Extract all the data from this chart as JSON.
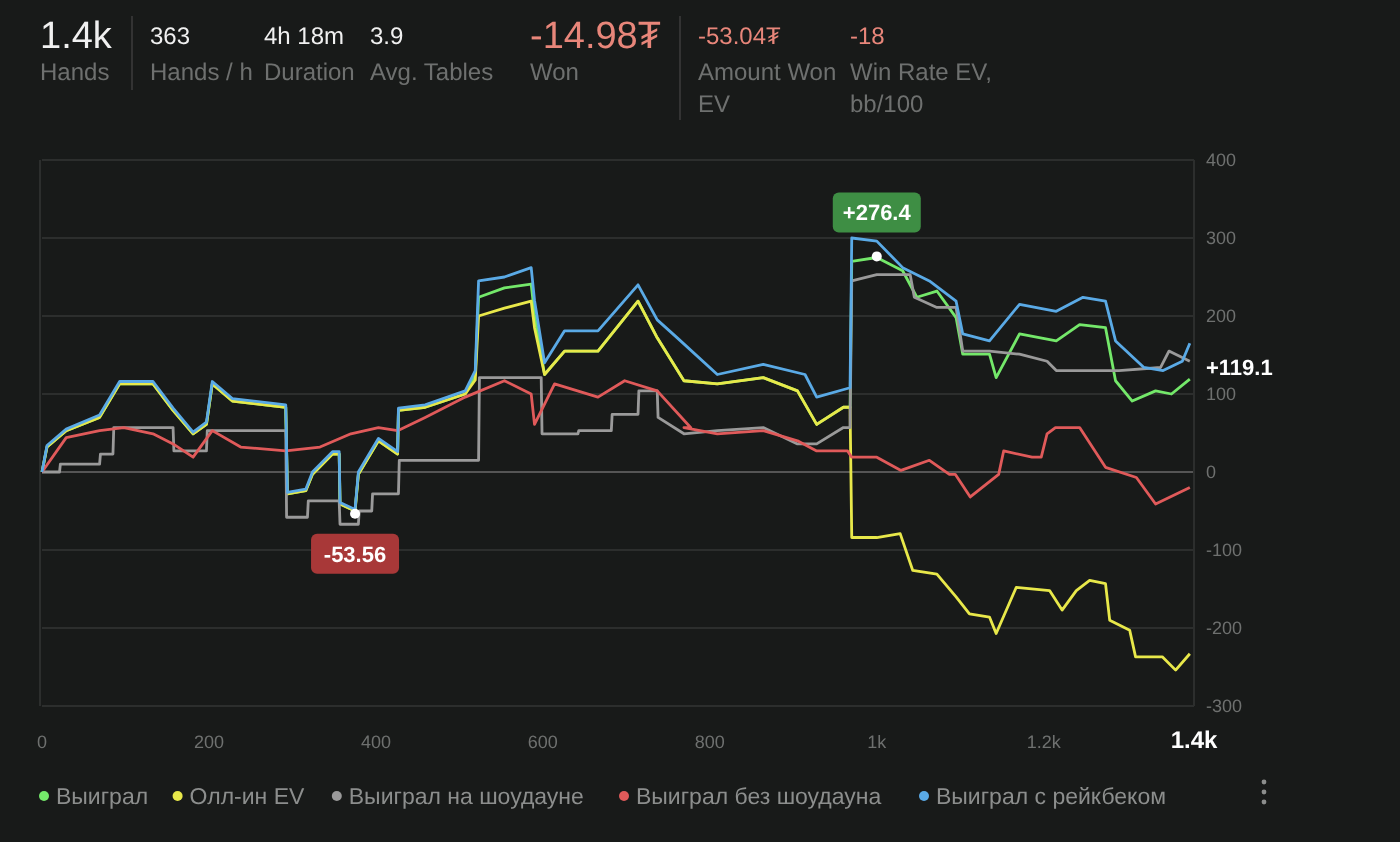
{
  "chart_data": {
    "type": "line",
    "annotations": [
      "1.4k",
      "Hands",
      "363",
      "Hands / h",
      "4h 18m",
      "Duration",
      "3.9",
      "Avg. Tables",
      "-14.98₮",
      "Won",
      "-53.04₮",
      "Amount Won EV",
      "-18",
      "Win Rate EV, bb/100",
      {
        "text": "+276.4",
        "x": 1000,
        "y": 276.4
      },
      {
        "text": "-53.56",
        "x": 375,
        "y": -53.56
      },
      {
        "text": "+119.1",
        "x": 1375,
        "y": 119.1
      }
    ],
    "xlim": [
      0,
      1380
    ],
    "ylim": [
      -300,
      400
    ],
    "xticks": [
      0,
      200,
      400,
      600,
      800,
      {
        "value": 1000,
        "label": "1k"
      },
      {
        "value": 1200,
        "label": "1.2k"
      },
      {
        "value": 1380,
        "label": "1.4k"
      }
    ],
    "yticks": [
      -300,
      -200,
      -100,
      0,
      100,
      200,
      300,
      400
    ],
    "grid": "y",
    "legend": "bottom",
    "marker": "none",
    "line_style": "solid",
    "series": [
      {
        "name": "Выиграл",
        "color": "#74e86a",
        "x": [
          0,
          6,
          29,
          69,
          93,
          133,
          157,
          181,
          197,
          204,
          228,
          292,
          294,
          316,
          324,
          348,
          356,
          357,
          375,
          379,
          403,
          426,
          427,
          459,
          507,
          519,
          523,
          554,
          586,
          590,
          602,
          626,
          666,
          714,
          737,
          769,
          809,
          864,
          905,
          928,
          960,
          968,
          970,
          1000,
          1031,
          1048,
          1072,
          1095,
          1103,
          1135,
          1143,
          1171,
          1215,
          1243,
          1274,
          1286,
          1306,
          1334,
          1353,
          1375
        ],
        "values": [
          0,
          32,
          53,
          70,
          113,
          113,
          79,
          49,
          61,
          113,
          91,
          83,
          -28,
          -24,
          -3,
          23,
          23,
          -41,
          -50,
          -3,
          40,
          23,
          79,
          83,
          100,
          125,
          224,
          236,
          241,
          202,
          125,
          155,
          155,
          219,
          172,
          117,
          113,
          121,
          104,
          61,
          83,
          83,
          270,
          275,
          258,
          224,
          232,
          198,
          151,
          151,
          121,
          177,
          168,
          189,
          185,
          117,
          91,
          104,
          100,
          119.1
        ]
      },
      {
        "name": "Олл-ин EV",
        "color": "#e8e84a",
        "x": [
          0,
          6,
          29,
          69,
          93,
          133,
          157,
          181,
          197,
          204,
          228,
          292,
          294,
          316,
          324,
          348,
          356,
          357,
          375,
          379,
          403,
          426,
          427,
          459,
          507,
          519,
          523,
          554,
          586,
          590,
          602,
          626,
          666,
          714,
          737,
          769,
          809,
          864,
          905,
          928,
          960,
          968,
          970,
          1000,
          1028,
          1043,
          1072,
          1095,
          1111,
          1135,
          1143,
          1167,
          1207,
          1222,
          1239,
          1255,
          1274,
          1279,
          1303,
          1310,
          1342,
          1358,
          1375
        ],
        "values": [
          0,
          32,
          53,
          70,
          113,
          113,
          79,
          49,
          61,
          113,
          91,
          83,
          -28,
          -24,
          -3,
          23,
          23,
          -41,
          -50,
          -3,
          40,
          23,
          79,
          83,
          100,
          118,
          200,
          210,
          219,
          185,
          125,
          155,
          155,
          219,
          172,
          117,
          113,
          121,
          104,
          61,
          83,
          83,
          -84,
          -84,
          -79,
          -126,
          -131,
          -160,
          -182,
          -186,
          -207,
          -148,
          -152,
          -177,
          -152,
          -139,
          -143,
          -190,
          -203,
          -237,
          -237,
          -254,
          -233
        ]
      },
      {
        "name": "Выиграл на шоудауне",
        "color": "#9a9a9a",
        "x": [
          0,
          21,
          22,
          69,
          70,
          85,
          86,
          157,
          158,
          197,
          198,
          292,
          293,
          318,
          319,
          356,
          357,
          379,
          380,
          395,
          396,
          427,
          428,
          523,
          524,
          598,
          599,
          642,
          643,
          682,
          683,
          714,
          715,
          737,
          738,
          769,
          809,
          864,
          905,
          928,
          960,
          968,
          970,
          1000,
          1040,
          1045,
          1072,
          1095,
          1103,
          1135,
          1171,
          1204,
          1215,
          1240,
          1290,
          1340,
          1350,
          1375
        ],
        "values": [
          0,
          0,
          10,
          10,
          23,
          23,
          57,
          57,
          27,
          27,
          53,
          53,
          -58,
          -58,
          -37,
          -37,
          -67,
          -67,
          -50,
          -50,
          -28,
          -28,
          15,
          15,
          121,
          121,
          49,
          49,
          53,
          53,
          74,
          74,
          104,
          104,
          70,
          49,
          53,
          57,
          36,
          36,
          57,
          57,
          245,
          253,
          253,
          224,
          211,
          211,
          155,
          155,
          151,
          142,
          130,
          130,
          130,
          134,
          155,
          142
        ]
      },
      {
        "name": "Выиграл без шоудауна",
        "color": "#e05a5a",
        "x": [
          0,
          29,
          69,
          98,
          133,
          157,
          181,
          204,
          238,
          292,
          333,
          370,
          403,
          426,
          459,
          507,
          554,
          586,
          590,
          614,
          666,
          698,
          737,
          777,
          769,
          809,
          864,
          905,
          928,
          965,
          970,
          1000,
          1029,
          1063,
          1087,
          1094,
          1112,
          1146,
          1152,
          1186,
          1197,
          1204,
          1214,
          1243,
          1274,
          1311,
          1334,
          1375
        ],
        "values": [
          0,
          44,
          53,
          57,
          49,
          36,
          19,
          53,
          32,
          27,
          32,
          49,
          57,
          53,
          70,
          96,
          117,
          100,
          61,
          113,
          96,
          117,
          104,
          57,
          57,
          49,
          53,
          40,
          27,
          27,
          19,
          19,
          2,
          15,
          -3,
          -3,
          -32,
          -3,
          27,
          19,
          19,
          49,
          57,
          57,
          6,
          -7,
          -41,
          -20
        ]
      },
      {
        "name": "Выиграл с рейкбеком",
        "color": "#5aaae6",
        "x": [
          0,
          6,
          29,
          69,
          93,
          133,
          157,
          181,
          197,
          204,
          228,
          292,
          294,
          316,
          324,
          348,
          356,
          357,
          375,
          379,
          403,
          426,
          427,
          459,
          507,
          519,
          523,
          554,
          586,
          590,
          602,
          626,
          666,
          714,
          737,
          761,
          809,
          864,
          914,
          928,
          968,
          970,
          1000,
          1031,
          1063,
          1095,
          1103,
          1135,
          1171,
          1215,
          1247,
          1274,
          1286,
          1320,
          1343,
          1366,
          1375
        ],
        "values": [
          0,
          34,
          55,
          73,
          116,
          116,
          82,
          51,
          64,
          116,
          94,
          86,
          -26,
          -22,
          0,
          26,
          26,
          -39,
          -48,
          0,
          43,
          26,
          82,
          86,
          104,
          130,
          245,
          250,
          262,
          220,
          140,
          181,
          181,
          240,
          195,
          172,
          125,
          138,
          125,
          96,
          108,
          300,
          296,
          262,
          245,
          219,
          177,
          168,
          215,
          206,
          224,
          219,
          168,
          134,
          130,
          142,
          165
        ]
      }
    ]
  }
}
